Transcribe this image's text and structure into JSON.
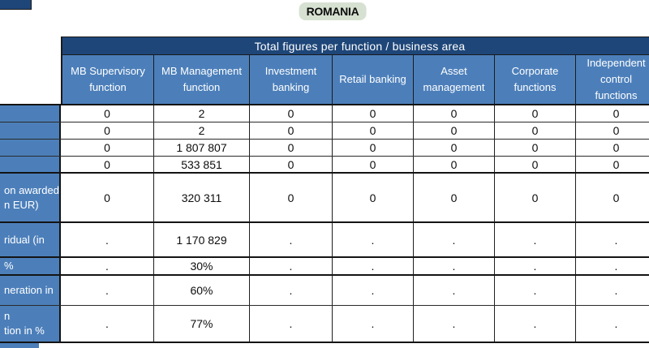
{
  "title": "ROMANIA",
  "colors": {
    "band_background": "#1e4679",
    "header_cell_background": "#4c7fba",
    "row_label_background": "#4c7fba",
    "title_background": "#d7e1d1",
    "grid_border": "#1a1a1a"
  },
  "table": {
    "band_title": "Total figures per function / business area",
    "columns": [
      "MB Supervisory function",
      "MB Management function",
      "Investment banking",
      "Retail banking",
      "Asset management",
      "Corporate functions",
      "Independent control functions"
    ],
    "rows": [
      {
        "label": "",
        "values": [
          "0",
          "2",
          "0",
          "0",
          "0",
          "0",
          "0"
        ]
      },
      {
        "label": "",
        "values": [
          "0",
          "2",
          "0",
          "0",
          "0",
          "0",
          "0"
        ]
      },
      {
        "label": "",
        "values": [
          "0",
          "1 807 807",
          "0",
          "0",
          "0",
          "0",
          "0"
        ]
      },
      {
        "label": "",
        "values": [
          "0",
          "533 851",
          "0",
          "0",
          "0",
          "0",
          "0"
        ]
      },
      {
        "label": "on awarded\nn EUR)",
        "values": [
          "0",
          "320 311",
          "0",
          "0",
          "0",
          "0",
          "0"
        ]
      },
      {
        "label": "ridual (in",
        "values": [
          ".",
          "1 170 829",
          ".",
          ".",
          ".",
          ".",
          "."
        ]
      },
      {
        "label": "%",
        "values": [
          ".",
          "30%",
          ".",
          ".",
          ".",
          ".",
          "."
        ]
      },
      {
        "label": "neration in",
        "values": [
          ".",
          "60%",
          ".",
          ".",
          ".",
          ".",
          "."
        ]
      },
      {
        "label": "n\ntion in %",
        "values": [
          ".",
          "77%",
          ".",
          ".",
          ".",
          ".",
          "."
        ]
      }
    ]
  }
}
